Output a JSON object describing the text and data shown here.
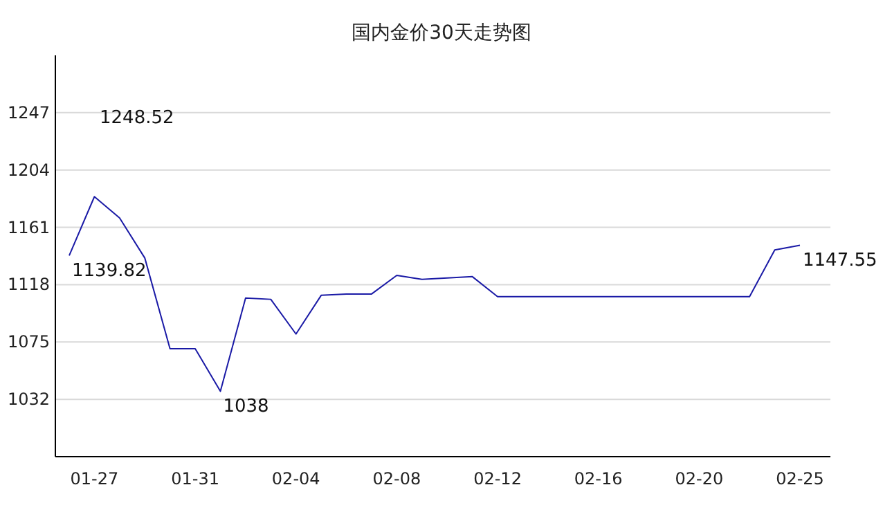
{
  "chart_data": {
    "type": "line",
    "title": "国内金价30天走势图",
    "categories": [
      null,
      "01-27",
      null,
      null,
      null,
      "01-31",
      null,
      null,
      null,
      "02-04",
      null,
      null,
      null,
      "02-08",
      null,
      null,
      null,
      "02-12",
      null,
      null,
      null,
      "02-16",
      null,
      null,
      null,
      "02-20",
      null,
      null,
      null,
      "02-25"
    ],
    "series": [
      {
        "color": "#1a1aa6",
        "values": [
          1139.82,
          1184,
          1168,
          1138,
          1070,
          1070,
          1038,
          1108,
          1107,
          1081,
          1110,
          1111,
          1111,
          1125,
          1122,
          1123,
          1124,
          1109,
          1109,
          1109,
          1109,
          1109,
          1109,
          1109,
          1109,
          1109,
          1109,
          1109,
          1144,
          1147.55
        ],
        "value_labels": [
          "1139.82",
          null,
          null,
          null,
          null,
          null,
          "1038",
          null,
          null,
          null,
          null,
          null,
          null,
          null,
          null,
          null,
          null,
          null,
          null,
          null,
          null,
          null,
          null,
          null,
          null,
          null,
          null,
          null,
          null,
          "1147.55"
        ]
      }
    ],
    "ylim": [
      989,
      1290
    ],
    "yticks": [
      1032,
      1075,
      1118,
      1161,
      1204,
      1247
    ],
    "grid": "y",
    "marker": "none",
    "line_style": "solid",
    "annotations": [
      "1248.52"
    ]
  }
}
